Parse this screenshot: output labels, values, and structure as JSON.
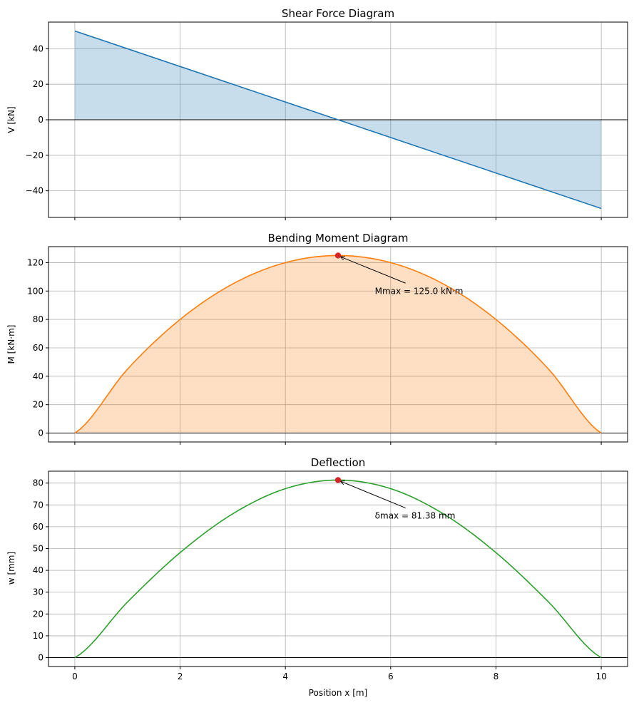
{
  "chart_data": [
    {
      "type": "area",
      "title": "Shear Force Diagram",
      "xlabel": "",
      "ylabel": "V [kN]",
      "xlim": [
        -0.5,
        10.5
      ],
      "ylim": [
        -55,
        55
      ],
      "xticks": [
        0,
        2,
        4,
        6,
        8,
        10
      ],
      "yticks": [
        -40,
        -20,
        0,
        20,
        40
      ],
      "grid": true,
      "zero_line": true,
      "color": "#1f77b4",
      "fill_color": "#1f77b4",
      "fill_opacity": 0.25,
      "x": [
        0,
        10
      ],
      "y": [
        50,
        -50
      ]
    },
    {
      "type": "area",
      "title": "Bending Moment Diagram",
      "xlabel": "",
      "ylabel": "M [kN·m]",
      "xlim": [
        -0.5,
        10.5
      ],
      "ylim": [
        -6.25,
        131.25
      ],
      "xticks": [
        0,
        2,
        4,
        6,
        8,
        10
      ],
      "yticks": [
        0,
        20,
        40,
        60,
        80,
        100,
        120
      ],
      "grid": true,
      "zero_line": true,
      "color": "#ff7f0e",
      "fill_color": "#ff7f0e",
      "fill_opacity": 0.25,
      "x": [
        0,
        1,
        2,
        3,
        4,
        5,
        6,
        7,
        8,
        9,
        10
      ],
      "y": [
        0,
        45,
        80,
        105,
        120,
        125,
        120,
        105,
        80,
        45,
        0
      ],
      "annotation": {
        "text": "Mmax = 125.0 kN·m",
        "x": 5,
        "y": 125,
        "text_x": 5.7,
        "text_y": 100,
        "marker_color": "#d62728"
      }
    },
    {
      "type": "line",
      "title": "Deflection",
      "xlabel": "Position x [m]",
      "ylabel": "w [mm]",
      "xlim": [
        -0.5,
        10.5
      ],
      "ylim": [
        -4.07,
        85.45
      ],
      "xticks": [
        0,
        2,
        4,
        6,
        8,
        10
      ],
      "yticks": [
        0,
        10,
        20,
        30,
        40,
        50,
        60,
        70,
        80
      ],
      "grid": true,
      "zero_line": true,
      "color": "#2ca02c",
      "x": [
        0,
        1,
        2,
        3,
        4,
        5,
        6,
        7,
        8,
        9,
        10
      ],
      "y": [
        0,
        25.47,
        48.13,
        65.92,
        77.45,
        81.38,
        77.45,
        65.92,
        48.13,
        25.47,
        0
      ],
      "annotation": {
        "text": "δmax = 81.38 mm",
        "x": 5,
        "y": 81.38,
        "text_x": 5.7,
        "text_y": 65,
        "marker_color": "#d62728"
      }
    }
  ]
}
